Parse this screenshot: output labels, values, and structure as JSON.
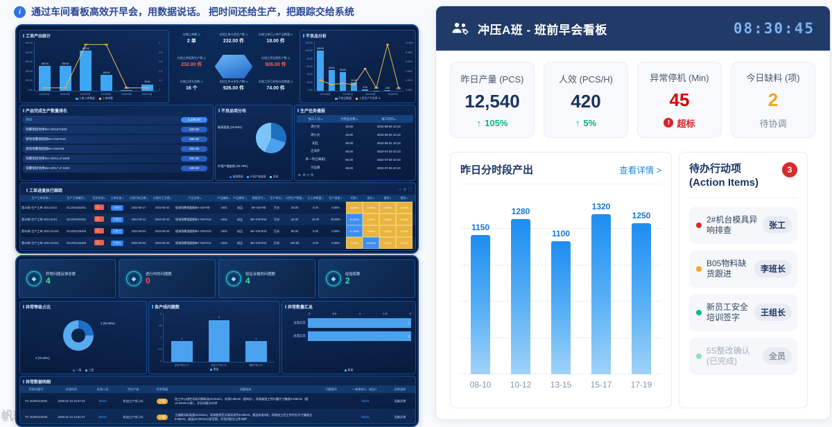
{
  "tip": {
    "icon_glyph": "i",
    "text": "通过车间看板高效开早会，用数据说话。 把时间还给生产，把跟踪交给系统"
  },
  "watermark": "帆软",
  "board": {
    "title": "冲压A班 - 班前早会看板",
    "clock": "08:30:45",
    "up_glyph": "↑",
    "alert_glyph": "!",
    "kpis": [
      {
        "label": "昨日产量 (PCS)",
        "value": "12,540",
        "tone": "navy",
        "sub": "105%",
        "sub_icon": "up",
        "sub_tone": "green"
      },
      {
        "label": "人效 (PCS/H)",
        "value": "420",
        "tone": "navy",
        "sub": "5%",
        "sub_icon": "up",
        "sub_tone": "green"
      },
      {
        "label": "异常停机 (Min)",
        "value": "45",
        "tone": "red",
        "sub": "超标",
        "sub_icon": "alert",
        "sub_tone": "red"
      },
      {
        "label": "今日缺料 (项)",
        "value": "2",
        "tone": "orange",
        "sub": "待协调",
        "sub_icon": "none",
        "sub_tone": "gray"
      }
    ],
    "chart": {
      "type": "bar",
      "title": "昨日分时段产出",
      "link": "查看详情 >",
      "categories": [
        "08-10",
        "10-12",
        "13-15",
        "15-17",
        "17-19"
      ],
      "values": [
        1150,
        1280,
        1100,
        1320,
        1250
      ],
      "labels": [
        "1150",
        "1280",
        "1100",
        "1320",
        "1250"
      ],
      "ymax": 1500,
      "gridline_values": [
        0,
        300,
        600,
        900,
        1200
      ]
    },
    "actions": {
      "title": "待办行动项 (Action Items)",
      "badge": "3",
      "items": [
        {
          "text": "2#机台模具异响排查",
          "assignee": "张工",
          "dot": "#d92b2b",
          "done": false
        },
        {
          "text": "B05物料缺货跟进",
          "assignee": "李班长",
          "dot": "#f5a623",
          "done": false
        },
        {
          "text": "新员工安全培训签字",
          "assignee": "王组长",
          "dot": "#10b981",
          "done": false
        },
        {
          "text": "5S整改确认(已完成)",
          "assignee": "全员",
          "dot": "#8fdcc0",
          "done": true
        }
      ]
    }
  },
  "dash1": {
    "p1": {
      "type": "bar+line",
      "title": "工单产出统计",
      "yticks": [
        "500.00",
        "400.00",
        "300.00",
        "200.00",
        "100.00",
        "0.00"
      ],
      "y2ticks": [
        "2",
        "1.8",
        "1.6",
        "1.4",
        "1.2",
        "1"
      ],
      "categories": [
        "2023/05月",
        "2023/06月",
        "2023/07月",
        "2023/08月",
        "2024/09月",
        "2024/12月"
      ],
      "bars": [
        300,
        300,
        480,
        190,
        8,
        78
      ],
      "bar_labels": [
        "300.00",
        "300.00",
        "480.00",
        "190.00",
        "8.00",
        "78.00"
      ],
      "line": [
        1,
        1,
        2,
        2,
        1,
        1
      ],
      "ymax": 500,
      "legend": [
        "工单入库数量",
        "工单单数"
      ]
    },
    "center": {
      "dot_icon": "◎",
      "items": [
        {
          "label": "在制工单数",
          "value": "2 单",
          "tone": "normal"
        },
        {
          "label": "在制工单计划生产数",
          "value": "232.00 件",
          "tone": "normal"
        },
        {
          "label": "在制工单已入库产品数量",
          "value": "18.00 件",
          "tone": "normal"
        },
        {
          "label": "在制工单延期生产数",
          "value": "232.00 件",
          "tone": "red"
        },
        {
          "label": "在制工序延期生产数",
          "value": "926.00 件",
          "tone": "red"
        },
        {
          "label": "在制工序任务数",
          "value": "16 个",
          "tone": "normal"
        },
        {
          "label": "在制工序计划生产数",
          "value": "926.00 件",
          "tone": "normal"
        },
        {
          "label": "在制工序已质检任务数量",
          "value": "74.00 件",
          "tone": "normal"
        }
      ]
    },
    "p3": {
      "type": "bar+line",
      "title": "不良品分析",
      "yticks": [
        "120.00",
        "100.00",
        "80.00",
        "60.00",
        "40.00",
        "20.00",
        "0.00"
      ],
      "y2ticks": [
        "10.00%",
        "8.00%",
        "6.00%",
        "4.00%",
        "2.00%",
        "0.00%"
      ],
      "categories": [
        "2023/05月",
        "2023/07月",
        "2024/02月",
        "2024/09月"
      ],
      "bars": [
        115,
        60,
        54,
        24,
        4,
        1,
        2,
        0
      ],
      "bar_labels": [
        "115.00",
        "60.00",
        "54.00",
        "24.00",
        "4.00",
        "1.00",
        "2.00",
        "0.00"
      ],
      "line_pct": [
        1.75,
        0.76,
        1.04,
        0.75,
        4.44,
        0,
        10,
        0
      ],
      "ymax": 120,
      "legend": [
        "不良品数量",
        "工序生产不良率 %"
      ]
    },
    "ranking": {
      "title": "产品完成生产数量排名",
      "rows": [
        {
          "name": "测试",
          "value": "1,338.00",
          "hl": true
        },
        {
          "name": "铜覆钢接地棒BH-GR16*1500",
          "value": "340.00",
          "hl": false
        },
        {
          "name": "镀锡铜覆钢圆钢BH-GW-R10",
          "value": "268.00",
          "hl": false
        },
        {
          "name": "镀锡铜覆钢圆钢BH-GW-R8",
          "value": "250.00",
          "hl": false
        },
        {
          "name": "铜覆钢接地棒BH-GR14.2*1500",
          "value": "200.00",
          "hl": false
        },
        {
          "name": "铜覆钢接地棒BH-GR17.2*1500",
          "value": "180.00",
          "hl": false
        }
      ]
    },
    "pie": {
      "type": "pie",
      "title": "不良品项分布",
      "slices": [
        {
          "label": "破损裂痕",
          "pct": 29.96,
          "color": "#1e6fc0"
        },
        {
          "label": "外观产量疵痕",
          "pct": 26.79,
          "color": "#4aa2ee"
        },
        {
          "label": "其他",
          "pct": 43.25,
          "color": "#7cc4f8"
        }
      ],
      "callouts": [
        "破损裂痕 (29.96%)",
        "外观产量疵痕 (26.79%)"
      ]
    },
    "broadcast": {
      "title": "生产任务播报",
      "headers": [
        "报工人员",
        "合格品总数",
        "报工时间"
      ],
      "rows": [
        [
          "周小文",
          "20.00",
          "2023-08-04 10:10"
        ],
        [
          "周小文",
          "22.00",
          "2023-08-04 10:10"
        ],
        [
          "纪红",
          "90.00",
          "2023-08-01 10:10"
        ],
        [
          "庄海乔",
          "46.00",
          "2023-07-29 10:10"
        ],
        [
          "单一平(已离职)",
          "94.00",
          "2023-07-28 10:10"
        ],
        [
          "刘玉德",
          "45.00",
          "2023-07-26 10:10"
        ]
      ],
      "footer_icon": "⊞",
      "footer": "共 77 条"
    },
    "tracking": {
      "title": "工单进度执行跟踪",
      "tools": [
        "○",
        "⟳",
        "⛶"
      ],
      "headers": [
        "生产工单名称",
        "生产工单编号",
        "任务状态",
        "工单状态",
        "计划开始日期",
        "计划完工日期",
        "产品名称",
        "产品编码",
        "产品属性",
        "规格型号",
        "生产单位",
        "计划生产数量",
        "已入库数量",
        "生产进度",
        "切割",
        "抛光",
        "镀铜",
        "镀锌"
      ],
      "rows": [
        {
          "name": "第18周-生产工单 2024.5A01",
          "code": "SCJ#24051001",
          "tstat": "已…",
          "wstat": "已完工",
          "start": "2024-05-17",
          "end": "2024-06-03",
          "product": "镀锡铜覆钢圆钢BH-GW-R8",
          "pcode": "A001",
          "pattr": "成品",
          "spec": "BH-GW-R8",
          "unit": "百米",
          "plan": "30.00",
          "stored": "0.00",
          "progress": "0.00%",
          "heat": [
            {
              "v": "0.00%",
              "t": "y"
            },
            {
              "v": "0.00%",
              "t": "y"
            },
            {
              "v": "0.00%",
              "t": "y"
            },
            {
              "v": "0.00%",
              "t": "y"
            }
          ]
        },
        {
          "name": "第18周-生产工单 2024.5A01",
          "code": "SCJ#24051001",
          "tstat": "已…",
          "wstat": "已完工",
          "start": "2024-05-11",
          "end": "2024-06-03",
          "product": "镀锡铜覆钢圆钢BH-GW-R10",
          "pcode": "A002",
          "pattr": "成品",
          "spec": "BH-GW-R10",
          "unit": "百米",
          "plan": "40.00",
          "stored": "18.00",
          "progress": "45.00%",
          "heat": [
            {
              "v": "45.00%",
              "t": "b"
            },
            {
              "v": "0.00%",
              "t": "y"
            },
            {
              "v": "0.00%",
              "t": "y"
            },
            {
              "v": "0.00%",
              "t": "y"
            }
          ]
        },
        {
          "name": "第36周-生产工单 2023.12A04",
          "code": "SCJ#23120406",
          "tstat": "已…",
          "wstat": "已完工",
          "start": "2023-09-04",
          "end": "2023-09-20",
          "product": "镀锡铜覆钢圆钢BH-GW-R10",
          "pcode": "A002",
          "pattr": "成品",
          "spec": "BH-GW-R10",
          "unit": "百米",
          "plan": "80.00",
          "stored": "0.00",
          "progress": "0.00%",
          "heat": [
            {
              "v": "47.50%",
              "t": "b"
            },
            {
              "v": "0.00%",
              "t": "y"
            },
            {
              "v": "0.00%",
              "t": "y"
            },
            {
              "v": "0.00%",
              "t": "y"
            }
          ]
        },
        {
          "name": "第36周-生产工单 2023.12A04",
          "code": "SCJ#23120406",
          "tstat": "已…",
          "wstat": "已完工",
          "start": "2023-09-04",
          "end": "2023-09-20",
          "product": "镀锡铜覆钢圆钢BH-GW-R12",
          "pcode": "A003",
          "pattr": "成品",
          "spec": "BH-GW-R12",
          "unit": "百米",
          "plan": "100.00",
          "stored": "0.00",
          "progress": "0.00%",
          "heat": [
            {
              "v": "0.00%",
              "t": "y"
            },
            {
              "v": "18.00%",
              "t": "b"
            },
            {
              "v": "0.00%",
              "t": "y"
            },
            {
              "v": "0.00%",
              "t": "y"
            }
          ]
        }
      ]
    }
  },
  "dash2": {
    "kpi_icon": "◆",
    "kpis": [
      {
        "label": "异常问题反馈总数",
        "value": "4",
        "tone": "green"
      },
      {
        "label": "进行中的问题数",
        "value": "0",
        "tone": "red"
      },
      {
        "label": "验证合格的问题数",
        "value": "4",
        "tone": "green"
      },
      {
        "label": "经验库数",
        "value": "2",
        "tone": "green"
      }
    ],
    "donut": {
      "type": "donut",
      "title": "异常等级占比",
      "slices": [
        {
          "label": "二级",
          "value": 1,
          "pct": 25,
          "color": "#1f6fc6"
        },
        {
          "label": "三级",
          "value": 3,
          "pct": 75,
          "color": "#57abee"
        }
      ],
      "callouts": [
        "1 (25.00%)",
        "3 (75.00%)"
      ]
    },
    "bars": {
      "type": "bar",
      "title": "各产线问题数",
      "yticks": [
        "2",
        "1.5",
        "1",
        "0.5",
        "0"
      ],
      "categories": [
        "冲压产线 (CY)",
        "机加工产线 (JJ)",
        "装配产线 (ZP)"
      ],
      "values": [
        1,
        2,
        1
      ],
      "labels": [
        "1",
        "2",
        "1"
      ],
      "ymax": 2,
      "legend": [
        "数量"
      ]
    },
    "hbars": {
      "type": "hbar",
      "title": "异常数量汇总",
      "xticks": [
        "0",
        "0.5",
        "1",
        "1.5",
        "2"
      ],
      "categories": [
        "设备异常",
        "质量异常"
      ],
      "values": [
        2,
        2
      ],
      "labels": [
        "2",
        "2"
      ],
      "xmax": 2,
      "legend": [
        "数量"
      ]
    },
    "table": {
      "title": "异常数据明细",
      "headers": [
        "异常问题号",
        "反馈时间",
        "反馈人员",
        "涉及产线",
        "异常等级",
        "问题描述",
        "问题图片",
        "一级审核人（组长）",
        "异常类别"
      ],
      "rows": [
        {
          "id": "YC-20260110004",
          "time": "2026-01-10 15:07:43",
          "reporter": "Weiss",
          "line": "机加工产线 (JJ)",
          "level": "二级",
          "desc": "加工中心线性导轨间隙标准≤0.01mm，实测0.06mm（超5倍），导致轴类工件外圆尺寸偏差0.045mm（超±0.02mm公差），涉及同批次42件",
          "auditor": "Weiss",
          "category": "设备异常"
        },
        {
          "id": "YC-20260110003",
          "time": "2026-01-10 14:52:47",
          "reporter": "Weiss",
          "line": "机加工产线 (JJ)",
          "level": "二级",
          "desc": "主轴跳动标准值≤0.02mm，现场使用百分表实测为0.08mm，超出标准3倍；导致加工后工件内孔尺寸偏差达0.05mm，超出±0.02mm公差范围，涉及同批次工件35件",
          "auditor": "Weiss",
          "category": "设备异常"
        }
      ]
    }
  }
}
